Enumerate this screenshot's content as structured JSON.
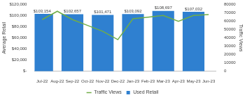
{
  "chart_data": {
    "type": "bar",
    "categories": [
      "Jul-22",
      "Aug-22",
      "Sep-22",
      "Oct-22",
      "Nov-22",
      "Dec-22",
      "Jan-23",
      "Feb-23",
      "Mar-23",
      "Apr-23",
      "May-23",
      "Jun-23"
    ],
    "series": [
      {
        "name": "Used Retail",
        "type": "bar",
        "color": "#2f80d0",
        "values": [
          103154,
          null,
          102657,
          null,
          101471,
          null,
          103092,
          null,
          108697,
          null,
          107032,
          null
        ],
        "value_labels": [
          "$103,154",
          null,
          "$102,657",
          null,
          "$101,471",
          null,
          "$103,092",
          null,
          "$108,697",
          null,
          "$107,032",
          null
        ]
      },
      {
        "name": "Traffic Views",
        "type": "line",
        "color": "#70ad47",
        "axis": "y2",
        "marker": "none",
        "line_style": "solid",
        "values": [
          62000,
          72000,
          62000,
          55000,
          48000,
          38000,
          63000,
          65000,
          67000,
          60000,
          67000,
          68000
        ]
      }
    ],
    "y_label": "Average Retail",
    "y2_label": "Traffic Views",
    "ylim": [
      0,
      120000
    ],
    "yticks": [
      {
        "value": 0,
        "label": "$-"
      },
      {
        "value": 20000,
        "label": "$20,000"
      },
      {
        "value": 40000,
        "label": "$40,000"
      },
      {
        "value": 60000,
        "label": "$60,000"
      },
      {
        "value": 80000,
        "label": "$80,000"
      },
      {
        "value": 100000,
        "label": "$100,000"
      },
      {
        "value": 120000,
        "label": "$120,000"
      }
    ],
    "y2lim": [
      0,
      80000
    ],
    "y2ticks": [
      0,
      10000,
      20000,
      30000,
      40000,
      50000,
      60000,
      70000,
      80000
    ],
    "grid": false,
    "legend": "bottom",
    "data_labels": true
  }
}
